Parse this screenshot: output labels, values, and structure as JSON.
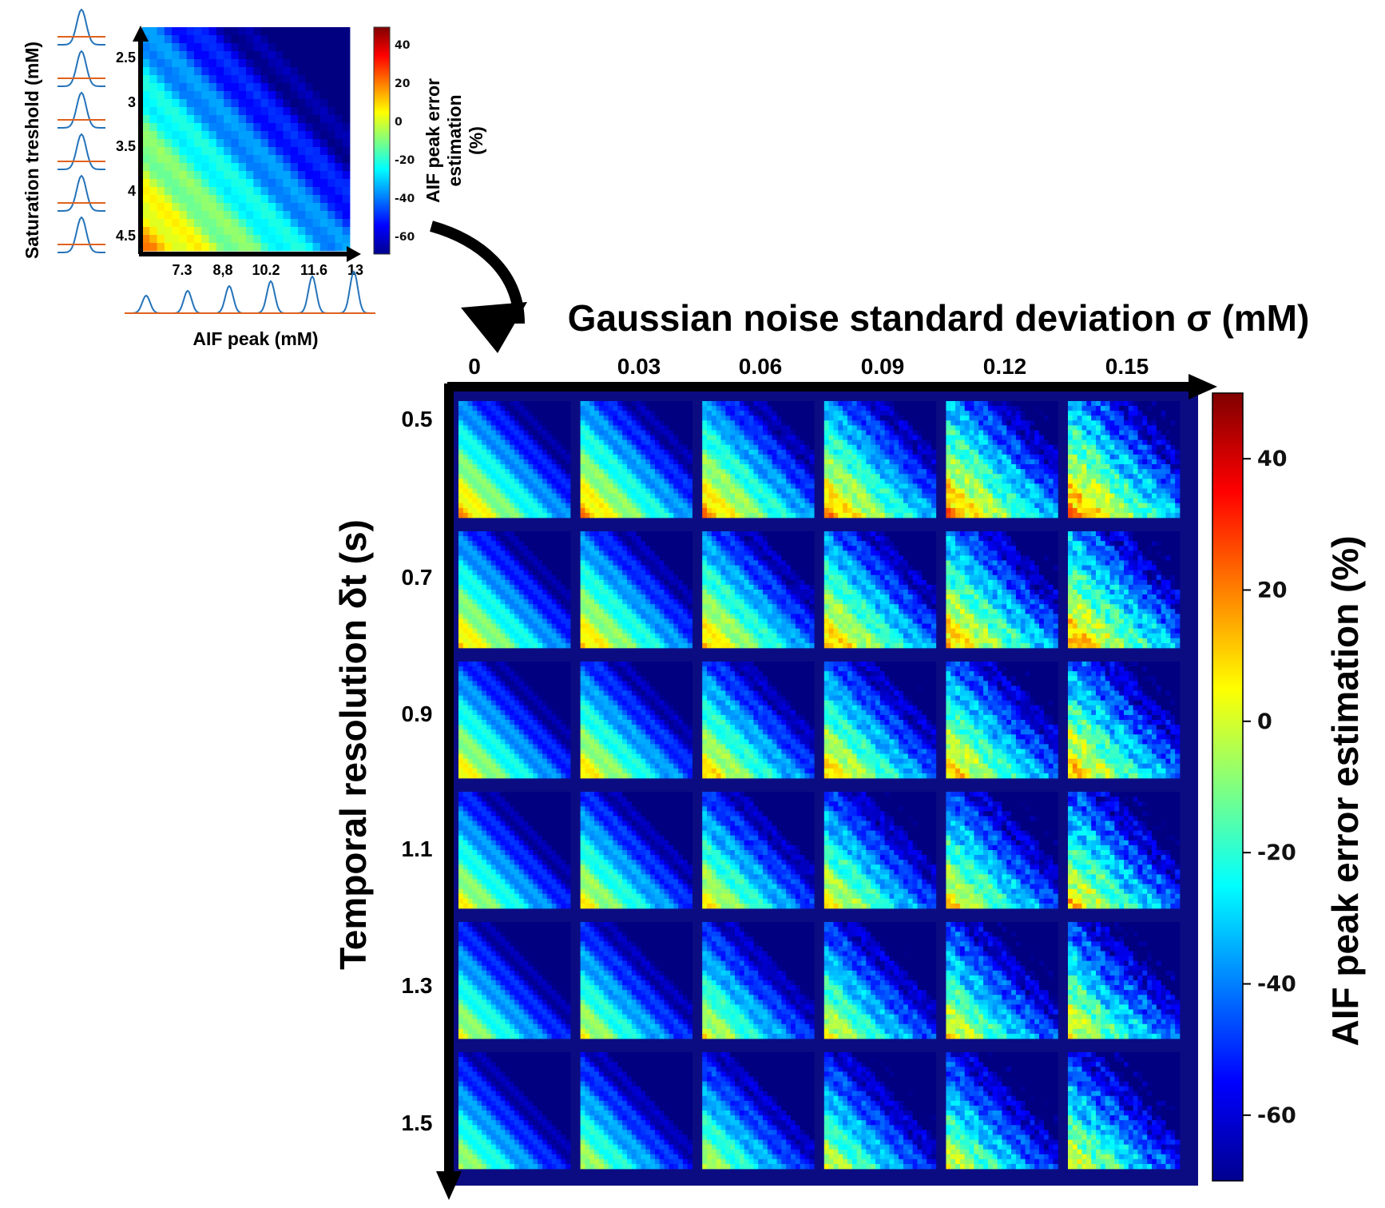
{
  "chart_data": {
    "type": "heatmap",
    "inset": {
      "ylabel": "Saturation treshold (mM)",
      "xlabel": "AIF peak (mM)",
      "yticks": [
        "2.5",
        "3",
        "3.5",
        "4",
        "4.5"
      ],
      "xticks": [
        "7.3",
        "8,8",
        "10.2",
        "11.6",
        "13"
      ],
      "colorbar": {
        "label_lines": [
          "AIF peak error",
          "estimation",
          "(%)"
        ],
        "ticks": [
          "40",
          "20",
          "0",
          "-20",
          "-40",
          "-60"
        ]
      }
    },
    "main": {
      "xlabel": "Gaussian noise standard deviation σ (mM)",
      "ylabel": "Temporal resolution δt (s)",
      "col_labels": [
        "0",
        "0.03",
        "0.06",
        "0.09",
        "0.12",
        "0.15"
      ],
      "row_labels": [
        "0.5",
        "0.7",
        "0.9",
        "1.1",
        "1.3",
        "1.5"
      ],
      "noise": [
        0,
        0.03,
        0.06,
        0.09,
        0.12,
        0.15
      ],
      "temporal_resolution": [
        0.5,
        0.7,
        0.9,
        1.1,
        1.3,
        1.5
      ],
      "colorbar": {
        "label": "AIF peak error estimation (%)",
        "ticks": [
          "40",
          "20",
          "0",
          "-20",
          "-40",
          "-60"
        ],
        "range": [
          -70,
          50
        ]
      }
    }
  }
}
